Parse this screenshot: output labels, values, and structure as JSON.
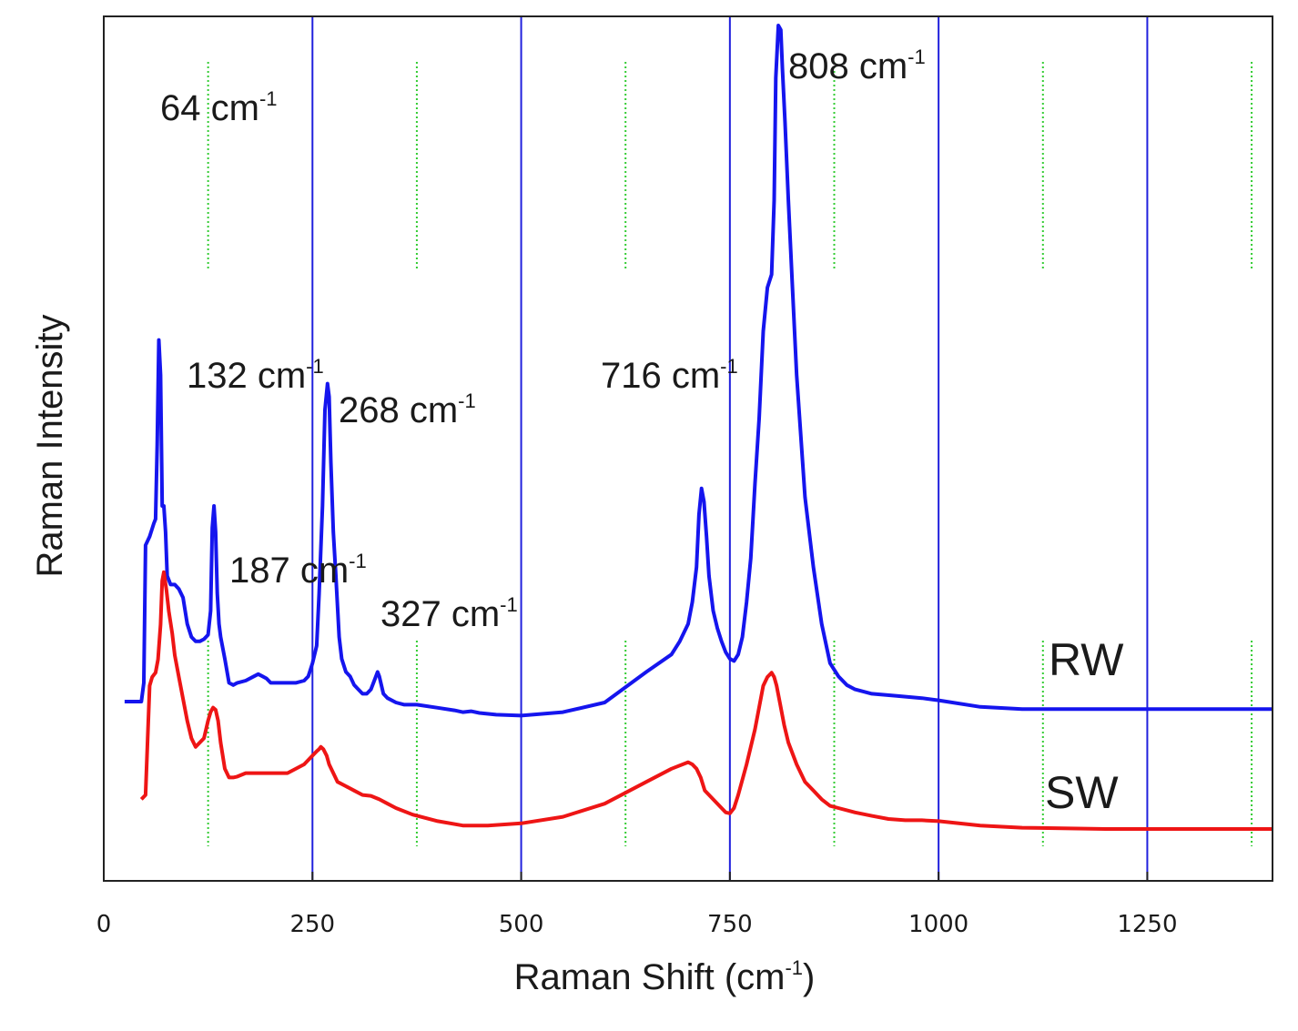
{
  "chart_data": {
    "type": "line",
    "xlabel": "Raman Shift (cm",
    "xlabel_sup": "-1",
    "xlabel_end": ")",
    "ylabel": "Raman Intensity",
    "xlim": [
      0,
      1400
    ],
    "x_ticks": [
      0,
      250,
      500,
      750,
      1000,
      1250
    ],
    "x_tick_labels": [
      "0",
      "250",
      "500",
      "750",
      "1000",
      "1250"
    ],
    "minor_grid_x": [
      125,
      375,
      625,
      875,
      1125,
      1375
    ],
    "colors": {
      "RW": "#1515ee",
      "SW": "#ee1515",
      "major_grid": "#2020dd",
      "minor_grid": "#33cc33"
    },
    "series": [
      {
        "name": "RW",
        "x": [
          25,
          45,
          48,
          50,
          55,
          60,
          62,
          64,
          66,
          68,
          70,
          72,
          74,
          76,
          80,
          85,
          90,
          95,
          100,
          105,
          110,
          115,
          120,
          125,
          128,
          130,
          132,
          134,
          136,
          138,
          140,
          145,
          150,
          155,
          160,
          170,
          180,
          185,
          190,
          195,
          200,
          210,
          230,
          240,
          245,
          250,
          255,
          258,
          262,
          265,
          268,
          270,
          272,
          275,
          278,
          282,
          285,
          290,
          295,
          300,
          305,
          310,
          315,
          320,
          325,
          328,
          330,
          335,
          340,
          350,
          360,
          375,
          400,
          420,
          430,
          440,
          450,
          470,
          500,
          550,
          600,
          650,
          680,
          690,
          700,
          705,
          710,
          713,
          716,
          719,
          722,
          725,
          730,
          735,
          740,
          745,
          750,
          755,
          760,
          765,
          770,
          775,
          780,
          785,
          790,
          795,
          800,
          803,
          805,
          808,
          811,
          813,
          816,
          820,
          825,
          830,
          840,
          850,
          860,
          870,
          880,
          890,
          900,
          920,
          950,
          980,
          1000,
          1050,
          1100,
          1200,
          1300,
          1400
        ],
        "y": [
          52,
          52,
          95,
          410,
          430,
          460,
          470,
          640,
          880,
          800,
          500,
          500,
          440,
          340,
          320,
          320,
          310,
          290,
          230,
          200,
          190,
          190,
          195,
          205,
          260,
          450,
          500,
          440,
          300,
          230,
          200,
          150,
          95,
          90,
          95,
          100,
          110,
          115,
          110,
          105,
          95,
          95,
          95,
          100,
          110,
          140,
          180,
          300,
          500,
          720,
          780,
          750,
          600,
          440,
          340,
          200,
          150,
          120,
          110,
          90,
          80,
          70,
          70,
          80,
          105,
          120,
          110,
          70,
          60,
          50,
          45,
          45,
          38,
          32,
          28,
          30,
          26,
          22,
          20,
          28,
          50,
          120,
          160,
          190,
          230,
          280,
          360,
          480,
          540,
          510,
          430,
          340,
          260,
          220,
          190,
          165,
          150,
          145,
          160,
          200,
          280,
          380,
          550,
          700,
          900,
          1000,
          1030,
          1200,
          1480,
          1600,
          1590,
          1500,
          1380,
          1200,
          1000,
          800,
          520,
          360,
          230,
          140,
          110,
          90,
          80,
          70,
          65,
          60,
          55,
          40,
          35,
          35,
          35,
          35
        ],
        "peak_labels": [
          {
            "x": 64,
            "text": "64 cm",
            "sup": "-1"
          },
          {
            "x": 132,
            "text": "132 cm",
            "sup": "-1"
          },
          {
            "x": 187,
            "text": "187 cm",
            "sup": "-1"
          },
          {
            "x": 268,
            "text": "268 cm",
            "sup": "-1"
          },
          {
            "x": 327,
            "text": "327 cm",
            "sup": "-1"
          },
          {
            "x": 716,
            "text": "716 cm",
            "sup": "-1"
          },
          {
            "x": 808,
            "text": "808 cm",
            "sup": "-1"
          }
        ],
        "label": "RW"
      },
      {
        "name": "SW",
        "x": [
          45,
          50,
          55,
          58,
          62,
          65,
          68,
          70,
          72,
          75,
          78,
          82,
          85,
          90,
          95,
          100,
          105,
          110,
          115,
          120,
          125,
          128,
          131,
          134,
          137,
          140,
          145,
          150,
          155,
          160,
          170,
          180,
          200,
          220,
          240,
          250,
          255,
          258,
          260,
          263,
          267,
          270,
          275,
          280,
          290,
          300,
          310,
          320,
          330,
          340,
          350,
          370,
          400,
          430,
          460,
          500,
          550,
          600,
          650,
          680,
          700,
          705,
          710,
          715,
          720,
          730,
          740,
          745,
          750,
          755,
          760,
          770,
          780,
          790,
          795,
          800,
          803,
          806,
          810,
          815,
          820,
          830,
          840,
          850,
          860,
          870,
          880,
          900,
          920,
          940,
          960,
          980,
          1000,
          1050,
          1100,
          1200,
          1300,
          1400
        ],
        "y": [
          20,
          30,
          280,
          300,
          310,
          340,
          420,
          520,
          540,
          500,
          450,
          400,
          350,
          300,
          250,
          200,
          160,
          140,
          150,
          160,
          200,
          220,
          230,
          225,
          200,
          150,
          90,
          70,
          70,
          72,
          80,
          80,
          80,
          80,
          100,
          120,
          130,
          135,
          140,
          135,
          120,
          100,
          80,
          60,
          50,
          40,
          30,
          28,
          20,
          10,
          0,
          -15,
          -30,
          -40,
          -40,
          -35,
          -20,
          10,
          60,
          90,
          105,
          100,
          90,
          70,
          40,
          20,
          0,
          -10,
          -12,
          0,
          30,
          100,
          180,
          280,
          300,
          310,
          300,
          280,
          240,
          190,
          150,
          100,
          60,
          40,
          20,
          5,
          0,
          -10,
          -18,
          -25,
          -28,
          -28,
          -30,
          -40,
          -45,
          -48,
          -48,
          -48
        ],
        "label": "SW"
      }
    ]
  }
}
